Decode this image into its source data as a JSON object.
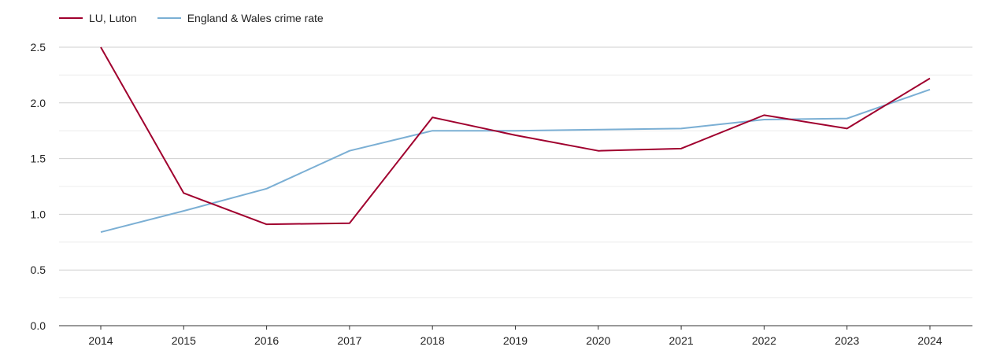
{
  "chart_data": {
    "type": "line",
    "x": [
      "2014",
      "2015",
      "2016",
      "2017",
      "2018",
      "2019",
      "2020",
      "2021",
      "2022",
      "2023",
      "2024"
    ],
    "yticks": [
      "0.0",
      "0.5",
      "1.0",
      "1.5",
      "2.0",
      "2.5"
    ],
    "ylim": [
      0,
      2.5
    ],
    "grid": true,
    "legend_position": "top-left",
    "series": [
      {
        "name": "LU, Luton",
        "color": "#a0002e",
        "values": [
          2.5,
          1.19,
          0.91,
          0.92,
          1.87,
          1.71,
          1.57,
          1.59,
          1.89,
          1.77,
          2.22
        ]
      },
      {
        "name": "England & Wales crime rate",
        "color": "#7bafd4",
        "values": [
          0.84,
          1.03,
          1.23,
          1.57,
          1.75,
          1.75,
          1.76,
          1.77,
          1.85,
          1.86,
          2.12
        ]
      }
    ]
  }
}
